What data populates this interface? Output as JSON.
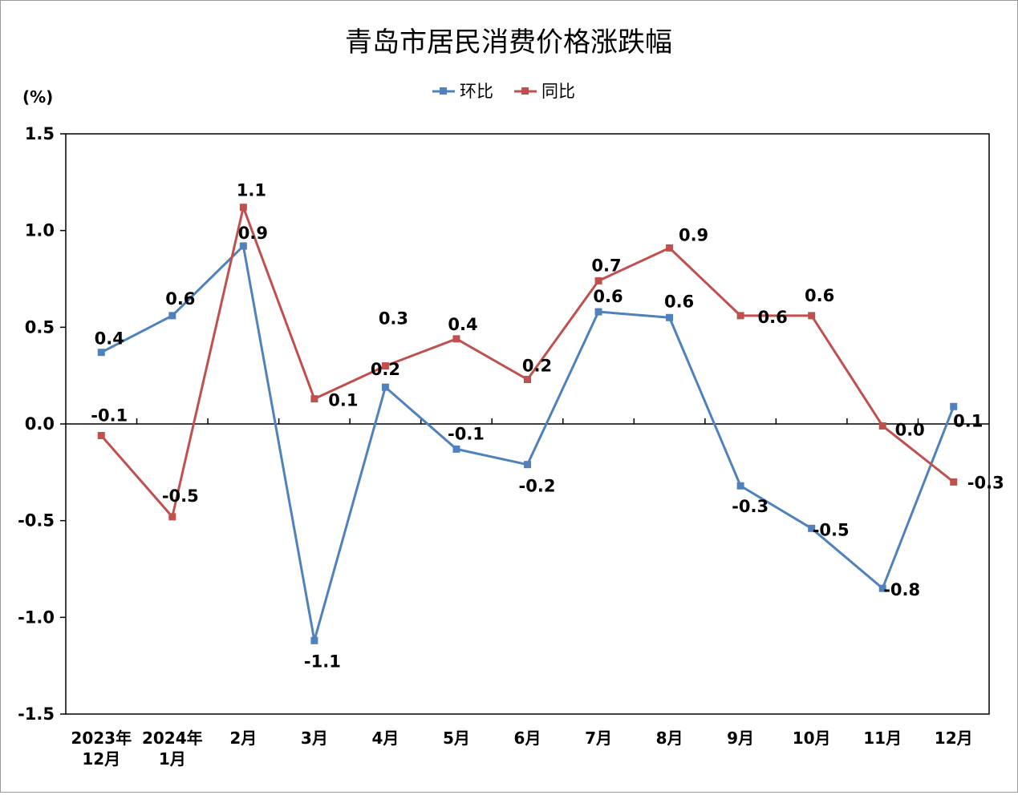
{
  "chart_data": {
    "type": "line",
    "title": "青岛市居民消费价格涨跌幅",
    "ylabel": "(%)",
    "ylim": [
      -1.5,
      1.5
    ],
    "yticks": [
      "1.5",
      "1.0",
      "0.5",
      "0.0",
      "-0.5",
      "-1.0",
      "-1.5"
    ],
    "categories": [
      [
        "2023年",
        "12月"
      ],
      [
        "2024年",
        "1月"
      ],
      [
        "2月"
      ],
      [
        "3月"
      ],
      [
        "4月"
      ],
      [
        "5月"
      ],
      [
        "6月"
      ],
      [
        "7月"
      ],
      [
        "8月"
      ],
      [
        "9月"
      ],
      [
        "10月"
      ],
      [
        "11月"
      ],
      [
        "12月"
      ]
    ],
    "grid": false,
    "legend": "top-center",
    "series": [
      {
        "name": "环比",
        "color": "#4F81BD",
        "values": [
          0.37,
          0.56,
          0.92,
          -1.12,
          0.19,
          -0.13,
          -0.21,
          0.58,
          0.55,
          -0.32,
          -0.54,
          -0.85,
          0.09
        ],
        "labels": [
          "0.4",
          "0.6",
          "0.9",
          "-1.1",
          "0.2",
          "-0.1",
          "-0.2",
          "0.6",
          "0.6",
          "-0.3",
          "-0.5",
          "-0.8",
          "0.1"
        ]
      },
      {
        "name": "同比",
        "color": "#C0504D",
        "values": [
          -0.06,
          -0.48,
          1.12,
          0.13,
          0.3,
          0.44,
          0.23,
          0.74,
          0.91,
          0.56,
          0.56,
          -0.01,
          -0.3
        ],
        "labels": [
          "-0.1",
          "-0.5",
          "1.1",
          "0.1",
          "0.3",
          "0.4",
          "0.2",
          "0.7",
          "0.9",
          "0.6",
          "0.6",
          "0.0",
          "-0.3"
        ]
      }
    ]
  }
}
